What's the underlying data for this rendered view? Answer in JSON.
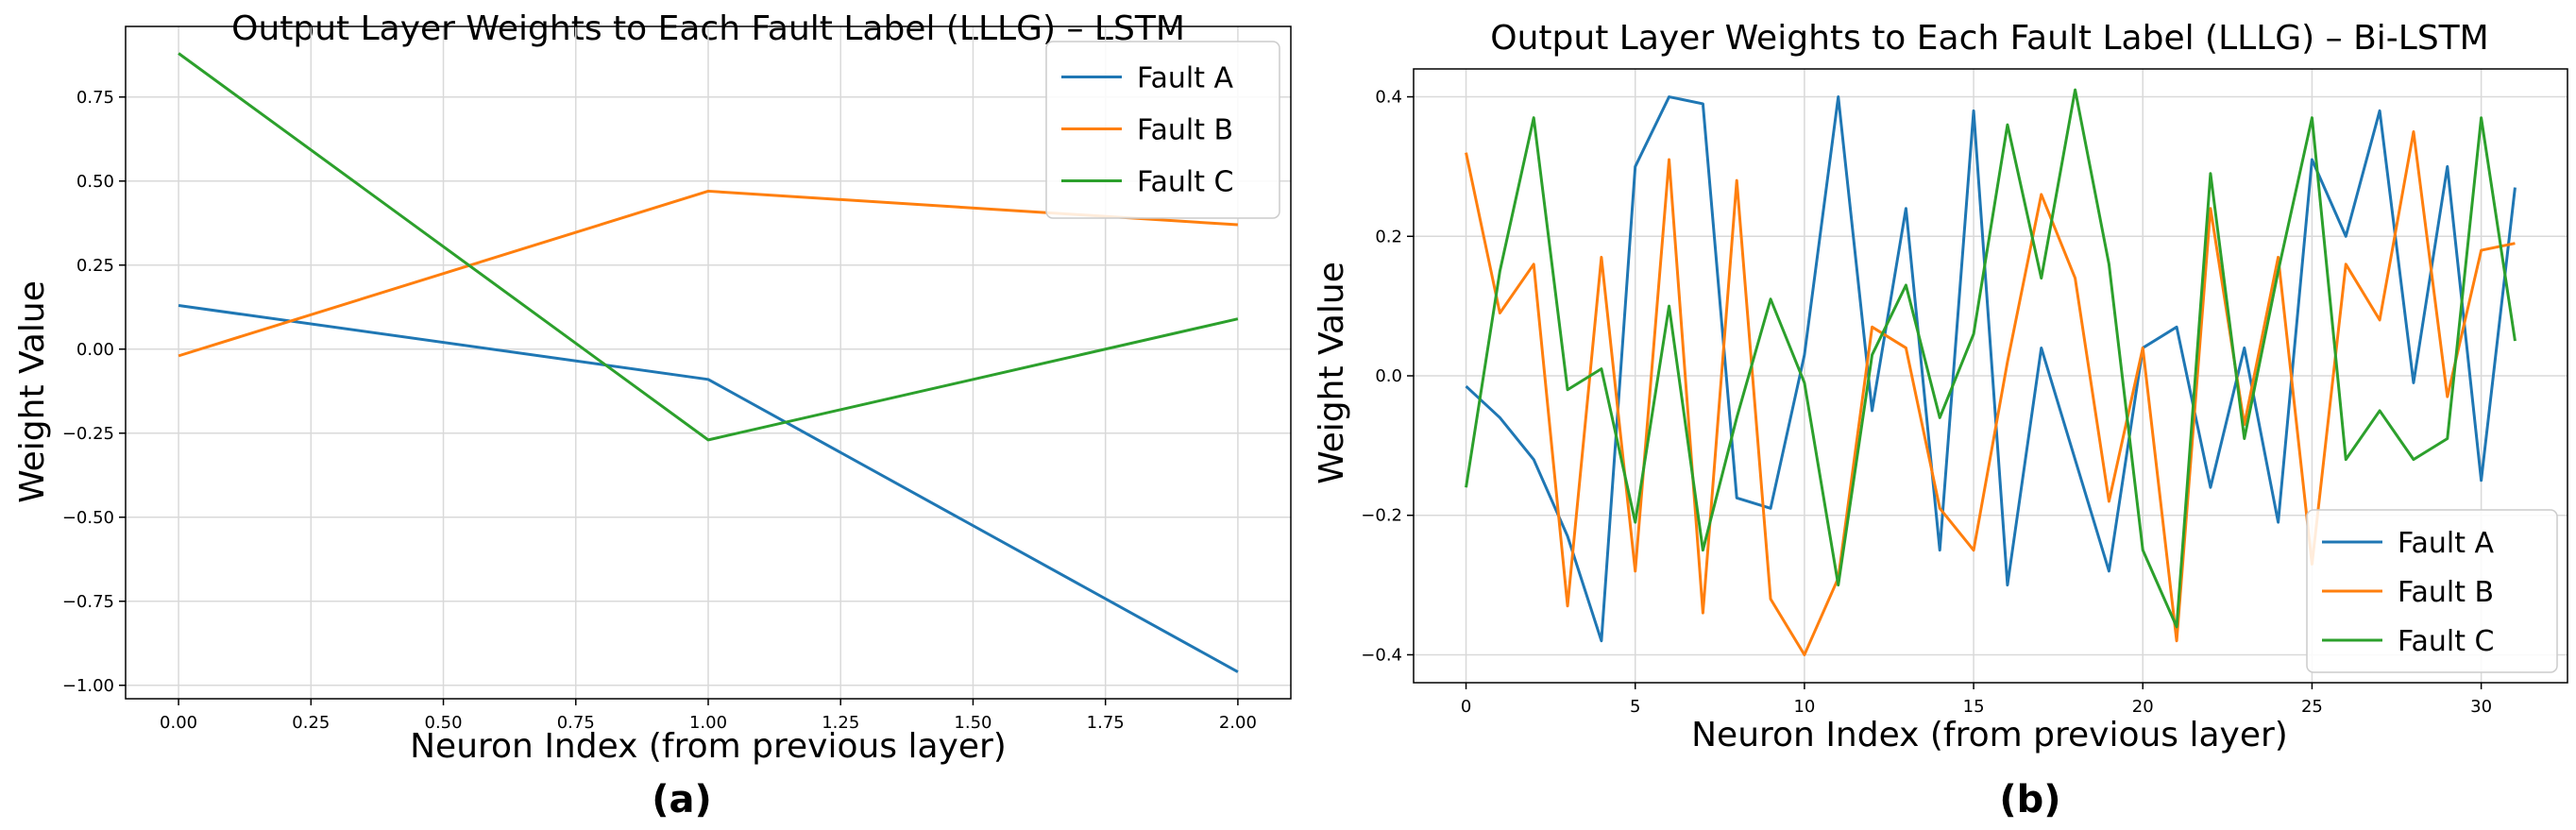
{
  "figure": {
    "panel_a_caption": "(a)",
    "panel_b_caption": "(b)"
  },
  "chart_data": [
    {
      "type": "line",
      "title": "Output Layer Weights to Each Fault Label (LLLG) – LSTM",
      "xlabel": "Neuron Index (from previous layer)",
      "ylabel": "Weight Value",
      "xlim": [
        -0.1,
        2.1
      ],
      "ylim": [
        -1.04,
        0.96
      ],
      "xticks": [
        0,
        0.25,
        0.5,
        0.75,
        1,
        1.25,
        1.5,
        1.75,
        2
      ],
      "xtick_labels": [
        "0.00",
        "0.25",
        "0.50",
        "0.75",
        "1.00",
        "1.25",
        "1.50",
        "1.75",
        "2.00"
      ],
      "yticks": [
        -1,
        -0.75,
        -0.5,
        -0.25,
        0,
        0.25,
        0.5,
        0.75
      ],
      "ytick_labels": [
        "−1.00",
        "−0.75",
        "−0.50",
        "−0.25",
        "0.00",
        "0.25",
        "0.50",
        "0.75"
      ],
      "grid": true,
      "legend_position": "top-right",
      "x": [
        0,
        1,
        2
      ],
      "series": [
        {
          "name": "Fault A",
          "color": "#1f77b4",
          "values": [
            0.13,
            -0.09,
            -0.96
          ]
        },
        {
          "name": "Fault B",
          "color": "#ff7f0e",
          "values": [
            -0.02,
            0.47,
            0.37
          ]
        },
        {
          "name": "Fault C",
          "color": "#2ca02c",
          "values": [
            0.88,
            -0.27,
            0.09
          ]
        }
      ]
    },
    {
      "type": "line",
      "title": "Output Layer Weights to Each Fault Label (LLLG) – Bi-LSTM",
      "xlabel": "Neuron Index (from previous layer)",
      "ylabel": "Weight Value",
      "xlim": [
        -1.55,
        32.55
      ],
      "ylim": [
        -0.44,
        0.44
      ],
      "xticks": [
        0,
        5,
        10,
        15,
        20,
        25,
        30
      ],
      "xtick_labels": [
        "0",
        "5",
        "10",
        "15",
        "20",
        "25",
        "30"
      ],
      "yticks": [
        -0.4,
        -0.2,
        0,
        0.2,
        0.4
      ],
      "ytick_labels": [
        "−0.4",
        "−0.2",
        "0.0",
        "0.2",
        "0.4"
      ],
      "grid": true,
      "legend_position": "bottom-right",
      "x": [
        0,
        1,
        2,
        3,
        4,
        5,
        6,
        7,
        8,
        9,
        10,
        11,
        12,
        13,
        14,
        15,
        16,
        17,
        18,
        19,
        20,
        21,
        22,
        23,
        24,
        25,
        26,
        27,
        28,
        29,
        30,
        31
      ],
      "series": [
        {
          "name": "Fault A",
          "color": "#1f77b4",
          "values": [
            -0.015,
            -0.06,
            -0.12,
            -0.23,
            -0.38,
            0.3,
            0.4,
            0.39,
            -0.175,
            -0.19,
            0.03,
            0.4,
            -0.05,
            0.24,
            -0.25,
            0.38,
            -0.3,
            0.04,
            -0.12,
            -0.28,
            0.04,
            0.07,
            -0.16,
            0.04,
            -0.21,
            0.31,
            0.2,
            0.38,
            -0.01,
            0.3,
            -0.15,
            0.27
          ]
        },
        {
          "name": "Fault B",
          "color": "#ff7f0e",
          "values": [
            0.32,
            0.09,
            0.16,
            -0.33,
            0.17,
            -0.28,
            0.31,
            -0.34,
            0.28,
            -0.32,
            -0.4,
            -0.29,
            0.07,
            0.04,
            -0.19,
            -0.25,
            0.02,
            0.26,
            0.14,
            -0.18,
            0.04,
            -0.38,
            0.24,
            -0.07,
            0.17,
            -0.27,
            0.16,
            0.08,
            0.35,
            -0.03,
            0.18,
            0.19
          ]
        },
        {
          "name": "Fault C",
          "color": "#2ca02c",
          "values": [
            -0.16,
            0.15,
            0.37,
            -0.02,
            0.01,
            -0.21,
            0.1,
            -0.25,
            -0.06,
            0.11,
            -0.01,
            -0.3,
            0.03,
            0.13,
            -0.06,
            0.06,
            0.36,
            0.14,
            0.41,
            0.16,
            -0.25,
            -0.36,
            0.29,
            -0.09,
            0.15,
            0.37,
            -0.12,
            -0.05,
            -0.12,
            -0.09,
            0.37,
            0.05
          ]
        }
      ]
    }
  ]
}
